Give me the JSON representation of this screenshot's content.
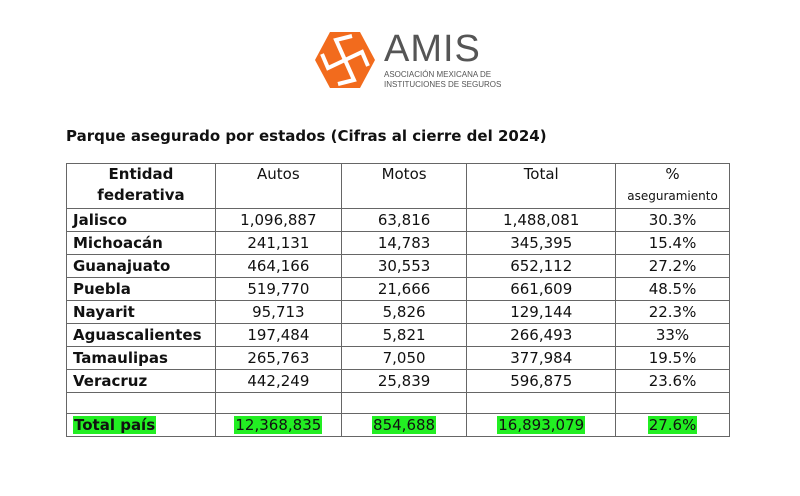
{
  "logo": {
    "brand": "AMIS",
    "line1": "ASOCIACIÓN MEXICANA DE",
    "line2": "INSTITUCIONES DE SEGUROS",
    "color": "#f26b1d"
  },
  "title": "Parque asegurado por estados (Cifras al cierre del 2024)",
  "table": {
    "headers": {
      "entity_line1": "Entidad",
      "entity_line2": "federativa",
      "autos": "Autos",
      "motos": "Motos",
      "total": "Total",
      "pct_line1": "%",
      "pct_line2": "aseguramiento"
    },
    "rows": [
      [
        "Jalisco",
        "1,096,887",
        "63,816",
        "1,488,081",
        "30.3%"
      ],
      [
        "Michoacán",
        "241,131",
        "14,783",
        "345,395",
        "15.4%"
      ],
      [
        "Guanajuato",
        "464,166",
        "30,553",
        "652,112",
        "27.2%"
      ],
      [
        "Puebla",
        "519,770",
        "21,666",
        "661,609",
        "48.5%"
      ],
      [
        "Nayarit",
        "95,713",
        "5,826",
        "129,144",
        "22.3%"
      ],
      [
        "Aguascalientes",
        "197,484",
        "5,821",
        "266,493",
        "33%"
      ],
      [
        "Tamaulipas",
        "265,763",
        "7,050",
        "377,984",
        "19.5%"
      ],
      [
        "Veracruz",
        "442,249",
        "25,839",
        "596,875",
        "23.6%"
      ]
    ],
    "total": [
      "Total país",
      "12,368,835",
      "854,688",
      "16,893,079",
      "27.6%"
    ],
    "highlight_color": "#22ee22"
  }
}
